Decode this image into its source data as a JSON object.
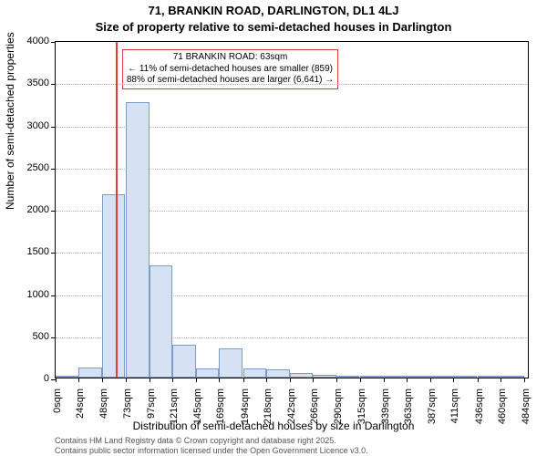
{
  "title_line1": "71, BRANKIN ROAD, DARLINGTON, DL1 4LJ",
  "title_line2": "Size of property relative to semi-detached houses in Darlington",
  "ylabel": "Number of semi-detached properties",
  "xlabel": "Distribution of semi-detached houses by size in Darlington",
  "footer_line1": "Contains HM Land Registry data © Crown copyright and database right 2025.",
  "footer_line2": "Contains public sector information licensed under the Open Government Licence v3.0.",
  "chart": {
    "type": "histogram",
    "background_color": "#ffffff",
    "grid_color": "#b0b0b0",
    "bar_fill": "#d6e2f3",
    "bar_stroke": "#7a9cc6",
    "axis_color": "#000000",
    "ref_line_color": "#e23b3b",
    "annot_border_color": "#e23b3b",
    "ylim": [
      0,
      4000
    ],
    "ytick_step": 500,
    "yticks": [
      0,
      500,
      1000,
      1500,
      2000,
      2500,
      3000,
      3500,
      4000
    ],
    "xticks": [
      {
        "v": 0,
        "label": "0sqm"
      },
      {
        "v": 24,
        "label": "24sqm"
      },
      {
        "v": 48,
        "label": "48sqm"
      },
      {
        "v": 73,
        "label": "73sqm"
      },
      {
        "v": 97,
        "label": "97sqm"
      },
      {
        "v": 121,
        "label": "121sqm"
      },
      {
        "v": 145,
        "label": "145sqm"
      },
      {
        "v": 169,
        "label": "169sqm"
      },
      {
        "v": 194,
        "label": "194sqm"
      },
      {
        "v": 218,
        "label": "218sqm"
      },
      {
        "v": 242,
        "label": "242sqm"
      },
      {
        "v": 266,
        "label": "266sqm"
      },
      {
        "v": 290,
        "label": "290sqm"
      },
      {
        "v": 315,
        "label": "315sqm"
      },
      {
        "v": 339,
        "label": "339sqm"
      },
      {
        "v": 363,
        "label": "363sqm"
      },
      {
        "v": 387,
        "label": "387sqm"
      },
      {
        "v": 411,
        "label": "411sqm"
      },
      {
        "v": 436,
        "label": "436sqm"
      },
      {
        "v": 460,
        "label": "460sqm"
      },
      {
        "v": 484,
        "label": "484sqm"
      }
    ],
    "x_range": [
      0,
      490
    ],
    "bar_width_sqm": 24,
    "bars": [
      {
        "x": 0,
        "y": 3
      },
      {
        "x": 24,
        "y": 120
      },
      {
        "x": 48,
        "y": 2170
      },
      {
        "x": 73,
        "y": 3260
      },
      {
        "x": 97,
        "y": 1330
      },
      {
        "x": 121,
        "y": 390
      },
      {
        "x": 145,
        "y": 110
      },
      {
        "x": 169,
        "y": 350
      },
      {
        "x": 194,
        "y": 110
      },
      {
        "x": 218,
        "y": 100
      },
      {
        "x": 242,
        "y": 50
      },
      {
        "x": 266,
        "y": 30
      },
      {
        "x": 290,
        "y": 15
      },
      {
        "x": 315,
        "y": 5
      },
      {
        "x": 339,
        "y": 3
      },
      {
        "x": 363,
        "y": 2
      },
      {
        "x": 387,
        "y": 2
      },
      {
        "x": 411,
        "y": 2
      },
      {
        "x": 436,
        "y": 2
      },
      {
        "x": 460,
        "y": 2
      }
    ],
    "ref_line_x": 63,
    "annotation": {
      "line1": "71 BRANKIN ROAD: 63sqm",
      "line2": "← 11% of semi-detached houses are smaller (859)",
      "line3": "88% of semi-detached houses are larger (6,641) →"
    },
    "title_fontsize": 13,
    "label_fontsize": 12,
    "tick_fontsize": 11,
    "annot_fontsize": 10,
    "footer_fontsize": 9
  }
}
